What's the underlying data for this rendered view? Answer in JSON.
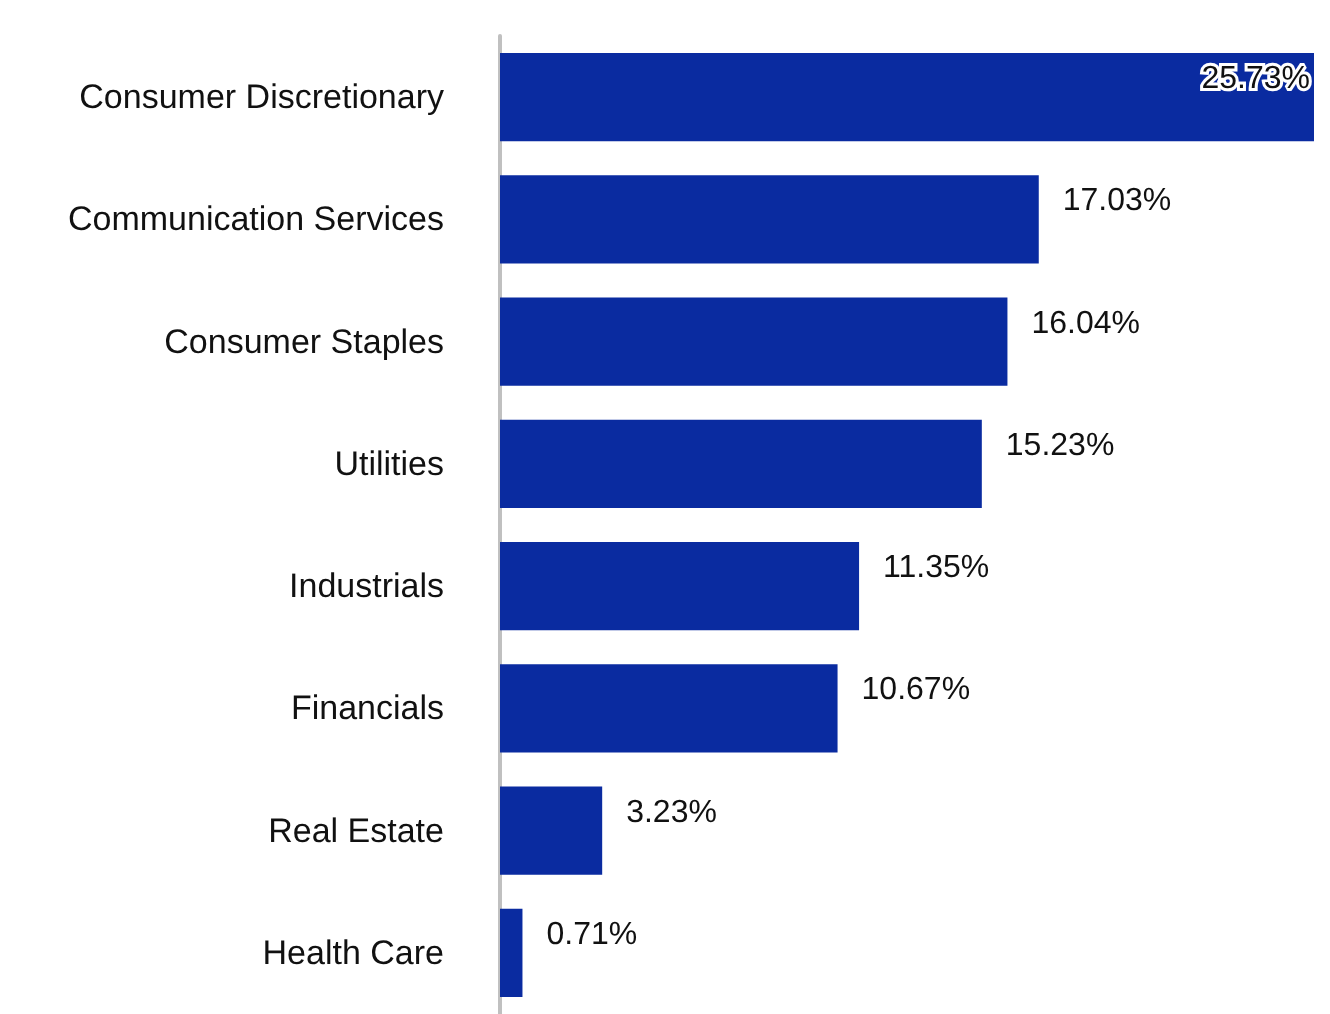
{
  "chart_data": {
    "type": "bar",
    "orientation": "horizontal",
    "categories": [
      "Consumer Discretionary",
      "Communication Services",
      "Consumer Staples",
      "Utilities",
      "Industrials",
      "Financials",
      "Real Estate",
      "Health Care"
    ],
    "values": [
      25.73,
      17.03,
      16.04,
      15.23,
      11.35,
      10.67,
      3.23,
      0.71
    ],
    "value_labels": [
      "25.73%",
      "17.03%",
      "16.04%",
      "15.23%",
      "11.35%",
      "10.67%",
      "3.23%",
      "0.71%"
    ],
    "color": "#0a2ba0"
  }
}
